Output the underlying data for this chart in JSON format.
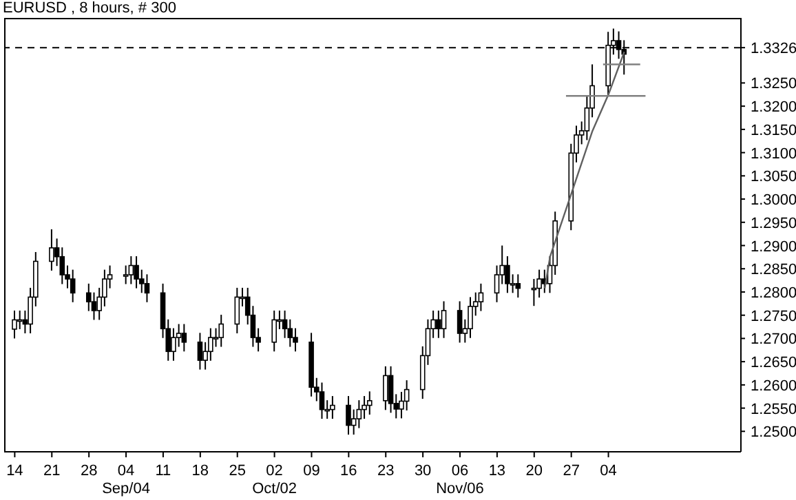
{
  "chart_data": {
    "type": "candlestick",
    "title": "EURUSD , 8 hours, # 300",
    "color": "#000000",
    "x": [
      "--08-14",
      "--08-15",
      "--08-16",
      "--08-17",
      "--08-18",
      "--08-21",
      "--08-22",
      "--08-23",
      "--08-24",
      "--08-25",
      "--08-28",
      "--08-29",
      "--08-30",
      "--08-31",
      "--09-01",
      "--09-04",
      "--09-05",
      "--09-06",
      "--09-07",
      "--09-08",
      "--09-11",
      "--09-12",
      "--09-13",
      "--09-14",
      "--09-15",
      "--09-18",
      "--09-19",
      "--09-20",
      "--09-21",
      "--09-22",
      "--09-25",
      "--09-26",
      "--09-27",
      "--09-28",
      "--09-29",
      "--10-02",
      "--10-03",
      "--10-04",
      "--10-05",
      "--10-06",
      "--10-09",
      "--10-10",
      "--10-11",
      "--10-12",
      "--10-13",
      "--10-16",
      "--10-17",
      "--10-18",
      "--10-19",
      "--10-20",
      "--10-23",
      "--10-24",
      "--10-25",
      "--10-26",
      "--10-27",
      "--10-30",
      "--10-31",
      "--11-01",
      "--11-02",
      "--11-03",
      "--11-06",
      "--11-07",
      "--11-08",
      "--11-09",
      "--11-10",
      "--11-13",
      "--11-14",
      "--11-15",
      "--11-16",
      "--11-17",
      "--11-20",
      "--11-21",
      "--11-22",
      "--11-23",
      "--11-24",
      "--11-27",
      "--11-28",
      "--11-29",
      "--11-30",
      "--12-01",
      "--12-04",
      "--12-05",
      "--12-06",
      "--12-07"
    ],
    "ohlc": [
      [
        1.272,
        1.276,
        1.27,
        1.274
      ],
      [
        1.274,
        1.276,
        1.272,
        1.274
      ],
      [
        1.274,
        1.276,
        1.2711,
        1.2731
      ],
      [
        1.2731,
        1.2809,
        1.2711,
        1.2789
      ],
      [
        1.2789,
        1.2886,
        1.2769,
        1.2866
      ],
      [
        1.2866,
        1.2935,
        1.2846,
        1.2895
      ],
      [
        1.2895,
        1.2915,
        1.2856,
        1.2876
      ],
      [
        1.2876,
        1.2896,
        1.2817,
        1.2837
      ],
      [
        1.2837,
        1.2857,
        1.2808,
        1.2828
      ],
      [
        1.2828,
        1.2848,
        1.2778,
        1.2798
      ],
      [
        1.2798,
        1.2818,
        1.2759,
        1.2779
      ],
      [
        1.2779,
        1.2799,
        1.274,
        1.276
      ],
      [
        1.276,
        1.2809,
        1.274,
        1.2789
      ],
      [
        1.2789,
        1.2848,
        1.2769,
        1.2828
      ],
      [
        1.2828,
        1.2857,
        1.2808,
        1.2837
      ],
      [
        1.2837,
        1.2857,
        1.2817,
        1.2837
      ],
      [
        1.2837,
        1.2877,
        1.2817,
        1.2857
      ],
      [
        1.2857,
        1.2877,
        1.2808,
        1.2828
      ],
      [
        1.2828,
        1.2848,
        1.2798,
        1.2818
      ],
      [
        1.2818,
        1.2838,
        1.2778,
        1.2798
      ],
      [
        1.2798,
        1.2818,
        1.2701,
        1.2721
      ],
      [
        1.2721,
        1.2741,
        1.2652,
        1.2672
      ],
      [
        1.2672,
        1.2722,
        1.2652,
        1.2702
      ],
      [
        1.2702,
        1.2731,
        1.2682,
        1.2711
      ],
      [
        1.2711,
        1.2731,
        1.2672,
        1.2692
      ],
      [
        1.2692,
        1.2712,
        1.2633,
        1.2653
      ],
      [
        1.2653,
        1.2692,
        1.2633,
        1.2672
      ],
      [
        1.2672,
        1.2722,
        1.2652,
        1.2702
      ],
      [
        1.2702,
        1.2722,
        1.2682,
        1.2702
      ],
      [
        1.2702,
        1.2751,
        1.2682,
        1.2731
      ],
      [
        1.2731,
        1.2809,
        1.2711,
        1.2789
      ],
      [
        1.2789,
        1.2809,
        1.2769,
        1.2789
      ],
      [
        1.2789,
        1.2809,
        1.273,
        1.275
      ],
      [
        1.275,
        1.277,
        1.2682,
        1.2702
      ],
      [
        1.2702,
        1.2722,
        1.2672,
        1.2692
      ],
      [
        1.2692,
        1.276,
        1.2672,
        1.274
      ],
      [
        1.274,
        1.276,
        1.272,
        1.274
      ],
      [
        1.274,
        1.276,
        1.2701,
        1.2721
      ],
      [
        1.2721,
        1.2741,
        1.2682,
        1.2702
      ],
      [
        1.2702,
        1.2722,
        1.2672,
        1.2692
      ],
      [
        1.2692,
        1.2712,
        1.2575,
        1.2595
      ],
      [
        1.2595,
        1.2615,
        1.2565,
        1.2585
      ],
      [
        1.2585,
        1.2605,
        1.2527,
        1.2547
      ],
      [
        1.2547,
        1.2567,
        1.2527,
        1.2547
      ],
      [
        1.2547,
        1.2576,
        1.2527,
        1.2556
      ],
      [
        1.2556,
        1.2576,
        1.2493,
        1.2513
      ],
      [
        1.2513,
        1.2547,
        1.2493,
        1.2527
      ],
      [
        1.2527,
        1.2567,
        1.2507,
        1.2547
      ],
      [
        1.2547,
        1.2576,
        1.2527,
        1.2556
      ],
      [
        1.2556,
        1.2586,
        1.2536,
        1.2566
      ],
      [
        1.2566,
        1.264,
        1.2546,
        1.262
      ],
      [
        1.262,
        1.264,
        1.254,
        1.256
      ],
      [
        1.256,
        1.258,
        1.2528,
        1.2548
      ],
      [
        1.2548,
        1.2585,
        1.2528,
        1.2565
      ],
      [
        1.2565,
        1.261,
        1.2545,
        1.259
      ],
      [
        1.259,
        1.2683,
        1.257,
        1.2663
      ],
      [
        1.2663,
        1.2741,
        1.2643,
        1.2721
      ],
      [
        1.2721,
        1.276,
        1.2701,
        1.274
      ],
      [
        1.274,
        1.276,
        1.2701,
        1.2721
      ],
      [
        1.2721,
        1.278,
        1.2701,
        1.276
      ],
      [
        1.276,
        1.278,
        1.2691,
        1.2711
      ],
      [
        1.2711,
        1.2741,
        1.2691,
        1.2721
      ],
      [
        1.2721,
        1.2789,
        1.2701,
        1.2769
      ],
      [
        1.2769,
        1.2799,
        1.2749,
        1.2779
      ],
      [
        1.2779,
        1.2818,
        1.2759,
        1.2798
      ],
      [
        1.2798,
        1.2857,
        1.2778,
        1.2837
      ],
      [
        1.2837,
        1.29,
        1.2817,
        1.2857
      ],
      [
        1.2857,
        1.2877,
        1.2798,
        1.2818
      ],
      [
        1.2818,
        1.2838,
        1.2798,
        1.2818
      ],
      [
        1.2818,
        1.2838,
        1.2788,
        1.2808
      ],
      [
        1.2808,
        1.2828,
        1.277,
        1.2808
      ],
      [
        1.2808,
        1.2848,
        1.2788,
        1.2828
      ],
      [
        1.2828,
        1.2848,
        1.2798,
        1.2818
      ],
      [
        1.2818,
        1.2877,
        1.2798,
        1.2857
      ],
      [
        1.2857,
        1.2973,
        1.2837,
        1.2953
      ],
      [
        1.2953,
        1.3119,
        1.2933,
        1.3099
      ],
      [
        1.3099,
        1.3158,
        1.3079,
        1.3138
      ],
      [
        1.3138,
        1.3167,
        1.3118,
        1.3147
      ],
      [
        1.3147,
        1.3222,
        1.3127,
        1.3196
      ],
      [
        1.3196,
        1.329,
        1.3176,
        1.3244
      ],
      [
        1.3244,
        1.336,
        1.3224,
        1.3331
      ],
      [
        1.3331,
        1.3367,
        1.3311,
        1.3341
      ],
      [
        1.3341,
        1.3361,
        1.3302,
        1.3322
      ],
      [
        1.3322,
        1.3342,
        1.3268,
        1.3312
      ]
    ],
    "series": [
      {
        "type": "line",
        "color": "#606060",
        "x": [
          "--11-22",
          "--11-23",
          "--12-01",
          "--12-04",
          "--12-07"
        ],
        "values": [
          1.2808,
          1.2876,
          1.3147,
          1.3225,
          1.3317
        ]
      },
      {
        "type": "line",
        "color": "#808080",
        "x": [
          "--11-26",
          "--12-11"
        ],
        "values": [
          1.3222,
          1.3222
        ]
      },
      {
        "type": "line",
        "color": "#808080",
        "x": [
          "--12-03",
          "--12-10"
        ],
        "values": [
          1.329,
          1.329
        ]
      }
    ],
    "ref_lines": [
      {
        "axis": "y",
        "value": 1.3326,
        "color": "#000000",
        "line_style": "dashed"
      }
    ],
    "xlim": [
      "--08-12",
      "--12-29"
    ],
    "xticks": [
      {
        "value": "--08-14",
        "label": "14"
      },
      {
        "value": "--08-21",
        "label": "21"
      },
      {
        "value": "--08-28",
        "label": "28"
      },
      {
        "value": "--09-04",
        "label": "04\nSep/04"
      },
      {
        "value": "--09-11",
        "label": "11"
      },
      {
        "value": "--09-18",
        "label": "18"
      },
      {
        "value": "--09-25",
        "label": "25"
      },
      {
        "value": "--10-02",
        "label": "02\nOct/02"
      },
      {
        "value": "--10-09",
        "label": "09"
      },
      {
        "value": "--10-16",
        "label": "16"
      },
      {
        "value": "--10-23",
        "label": "23"
      },
      {
        "value": "--10-30",
        "label": "30"
      },
      {
        "value": "--11-06",
        "label": "06\nNov/06"
      },
      {
        "value": "--11-13",
        "label": "13"
      },
      {
        "value": "--11-20",
        "label": "20"
      },
      {
        "value": "--11-27",
        "label": "27"
      },
      {
        "value": "--12-04",
        "label": "04"
      }
    ],
    "ylim": [
      1.2456,
      1.339
    ],
    "yticks": [
      {
        "value": 1.25,
        "label": "1.2500"
      },
      {
        "value": 1.255,
        "label": "1.2550"
      },
      {
        "value": 1.26,
        "label": "1.2600"
      },
      {
        "value": 1.265,
        "label": "1.2650"
      },
      {
        "value": 1.27,
        "label": "1.2700"
      },
      {
        "value": 1.275,
        "label": "1.2750"
      },
      {
        "value": 1.28,
        "label": "1.2800"
      },
      {
        "value": 1.285,
        "label": "1.2850"
      },
      {
        "value": 1.29,
        "label": "1.2900"
      },
      {
        "value": 1.295,
        "label": "1.2950"
      },
      {
        "value": 1.3,
        "label": "1.3000"
      },
      {
        "value": 1.305,
        "label": "1.3050"
      },
      {
        "value": 1.31,
        "label": "1.3100"
      },
      {
        "value": 1.315,
        "label": "1.3150"
      },
      {
        "value": 1.32,
        "label": "1.3200"
      },
      {
        "value": 1.325,
        "label": "1.3250"
      },
      1.3326
    ]
  }
}
